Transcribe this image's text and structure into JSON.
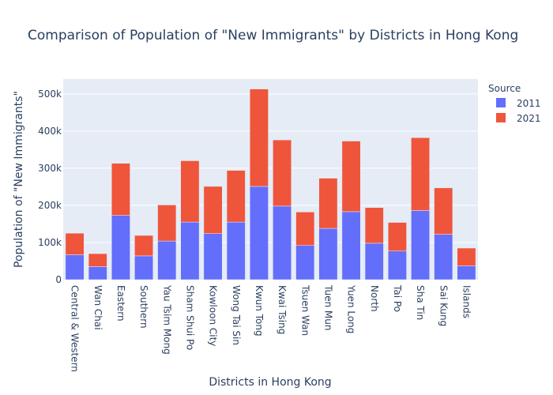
{
  "colors": {
    "plot_bg": "#e5ecf6",
    "grid": "#ffffff",
    "text": "#2a3f5f"
  },
  "chart_data": {
    "type": "bar",
    "stacked": true,
    "title": "Comparison of Population of \"New Immigrants\" by Districts in Hong Kong",
    "xlabel": "Districts in Hong Kong",
    "ylabel": "Population of \"New Immigrants\"",
    "ylim": [
      0,
      540000
    ],
    "yticks": [
      0,
      100000,
      200000,
      300000,
      400000,
      500000
    ],
    "ytick_labels": [
      "0",
      "100k",
      "200k",
      "300k",
      "400k",
      "500k"
    ],
    "grid": true,
    "legend": {
      "title": "Source",
      "position": "top-right"
    },
    "categories": [
      "Central & Western",
      "Wan Chai",
      "Eastern",
      "Southern",
      "Yau Tsim Mong",
      "Sham Shui Po",
      "Kowloon City",
      "Wong Tai Sin",
      "Kwun Tong",
      "Kwai Tsing",
      "Tsuen Wan",
      "Tuen Mun",
      "Yuen Long",
      "North",
      "Tai Po",
      "Sha Tin",
      "Sai Kung",
      "Islands"
    ],
    "series": [
      {
        "name": "2011",
        "color": "#636efa",
        "values": [
          67000,
          35000,
          173000,
          64000,
          104000,
          155000,
          124000,
          155000,
          251000,
          198000,
          92000,
          138000,
          183000,
          98000,
          77000,
          186000,
          122000,
          37000
        ]
      },
      {
        "name": "2021",
        "color": "#ef553b",
        "values": [
          58000,
          35000,
          140000,
          55000,
          97000,
          165000,
          127000,
          139000,
          262000,
          178000,
          90000,
          135000,
          190000,
          96000,
          77000,
          196000,
          125000,
          48000
        ]
      }
    ]
  }
}
